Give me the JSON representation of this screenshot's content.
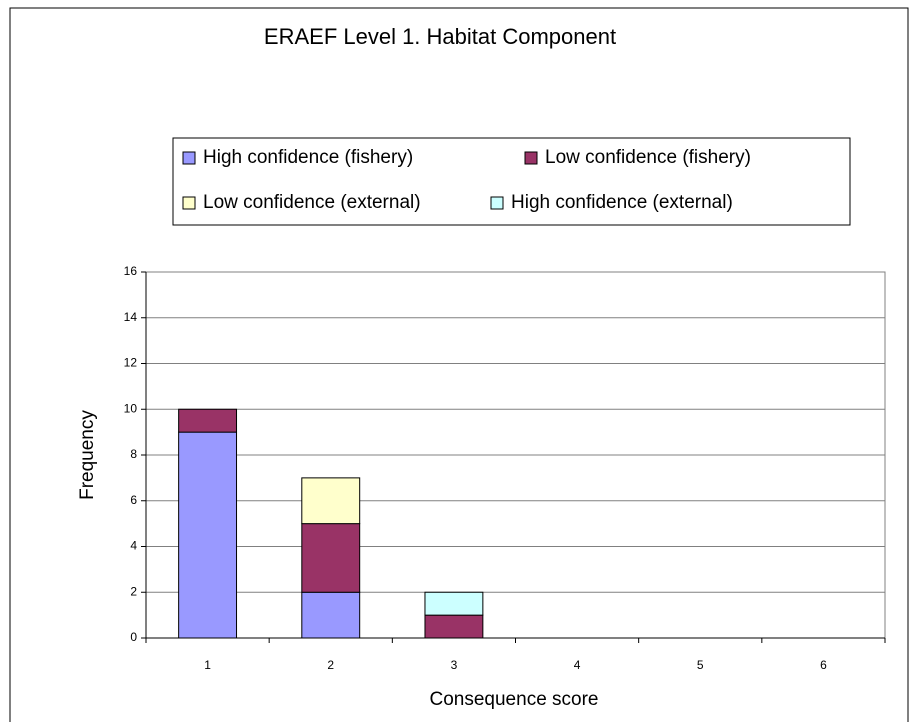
{
  "chart_data": {
    "type": "stacked_bar",
    "title": "ERAEF Level 1.  Habitat Component",
    "x_label": "Consequence score",
    "y_label": "Frequency",
    "categories": [
      "1",
      "2",
      "3",
      "4",
      "5",
      "6"
    ],
    "series": [
      {
        "name": "High confidence (fishery)",
        "color": "#9999ff",
        "values": [
          9,
          2,
          0,
          0,
          0,
          0
        ]
      },
      {
        "name": "Low confidence (fishery)",
        "color": "#993366",
        "values": [
          1,
          3,
          1,
          0,
          0,
          0
        ]
      },
      {
        "name": "Low confidence (external)",
        "color": "#ffffcc",
        "values": [
          0,
          2,
          0,
          0,
          0,
          0
        ]
      },
      {
        "name": "High confidence (external)",
        "color": "#ccffff",
        "values": [
          0,
          0,
          1,
          0,
          0,
          0
        ]
      }
    ],
    "ylim": [
      0,
      16
    ],
    "yticks": [
      0,
      2,
      4,
      6,
      8,
      10,
      12,
      14,
      16
    ],
    "grid": true
  }
}
